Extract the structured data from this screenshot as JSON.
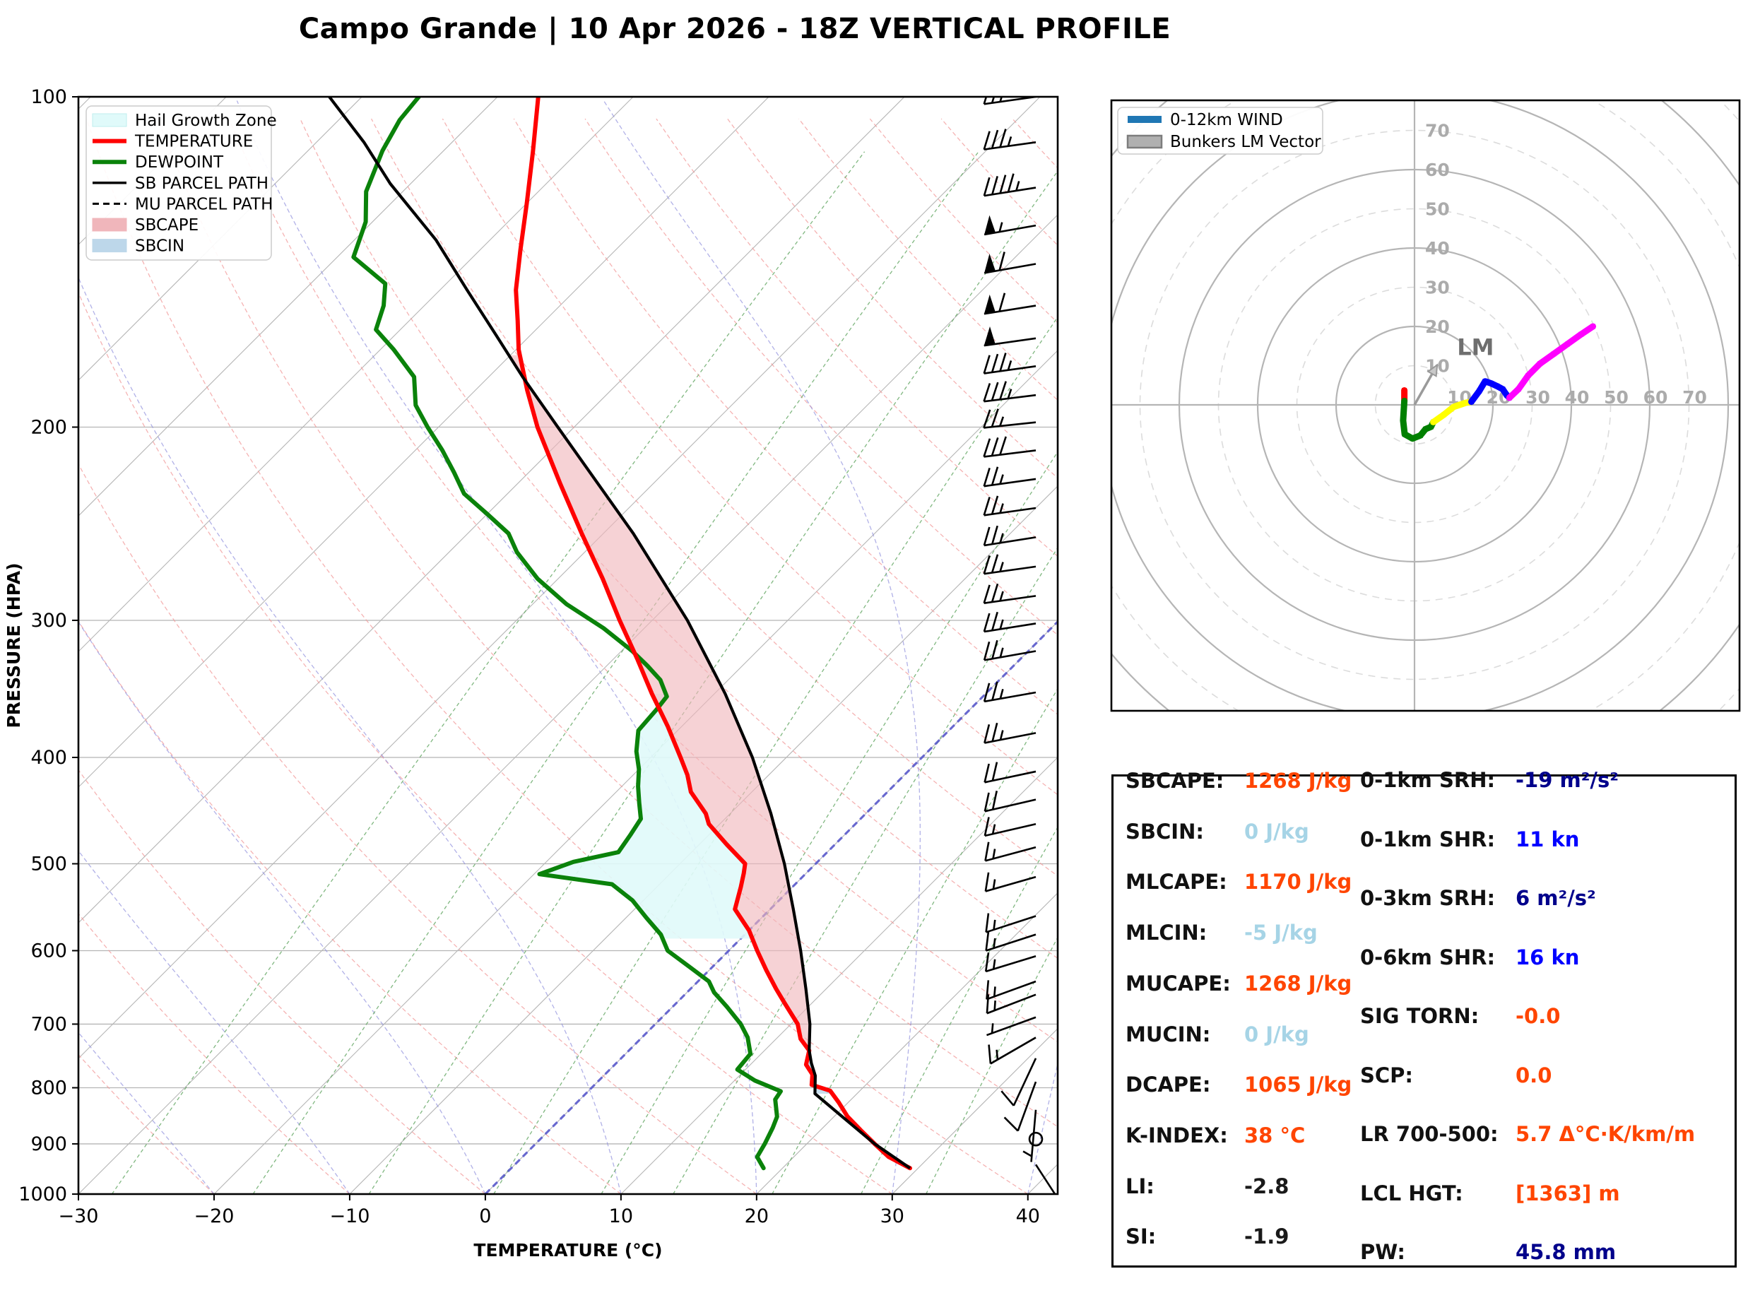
{
  "title": "Campo Grande | 10 Apr 2026 - 18Z VERTICAL PROFILE",
  "colors": {
    "temperature": "#ff0000",
    "dewpoint": "#0a820a",
    "parcel": "#000000",
    "sbcape_fill": "#f0b6bb",
    "sbcin_fill": "#bdd7ea",
    "hail_fill": "#e0fafa",
    "grid": "#b5b5b5",
    "dry_adiabat": "#f19999",
    "moist_adiabat": "#9090dd",
    "mixing_ratio": "#6aaa6a",
    "zero_isotherm": "#4d4dcc",
    "hodo_wind": "#1f77b4",
    "bunkers_gray": "#b0b0b0",
    "value_orange": "#ff4500",
    "value_lightblue": "#a6d4e6",
    "value_navy": "#00008b",
    "value_blue": "#0000ff",
    "value_black": "#1a1a1a"
  },
  "chart_data": [
    {
      "type": "skewt",
      "xlabel": "TEMPERATURE (°C)",
      "ylabel": "PRESSURE (HPA)",
      "x_ticks": [
        -30,
        -20,
        -10,
        0,
        10,
        20,
        30,
        40
      ],
      "p_ticks": [
        100,
        200,
        300,
        400,
        500,
        600,
        700,
        800,
        900,
        1000
      ],
      "xlim": [
        -30,
        42.2
      ],
      "plim": [
        100,
        1000
      ],
      "legend": [
        "Hail Growth Zone",
        "TEMPERATURE",
        "DEWPOINT",
        "SB PARCEL PATH",
        "MU PARCEL PATH",
        "SBCAPE",
        "SBCIN"
      ],
      "series": {
        "temperature": [
          [
            947,
            29.4
          ],
          [
            925,
            27.0
          ],
          [
            900,
            25.0
          ],
          [
            875,
            23.0
          ],
          [
            850,
            21.0
          ],
          [
            825,
            19.3
          ],
          [
            805,
            17.8
          ],
          [
            795,
            16.0
          ],
          [
            778,
            15.3
          ],
          [
            762,
            14.1
          ],
          [
            740,
            13.3
          ],
          [
            722,
            11.8
          ],
          [
            700,
            10.5
          ],
          [
            670,
            8.0
          ],
          [
            650,
            6.3
          ],
          [
            625,
            4.2
          ],
          [
            600,
            2.1
          ],
          [
            575,
            0.0
          ],
          [
            550,
            -2.6
          ],
          [
            525,
            -3.8
          ],
          [
            510,
            -4.6
          ],
          [
            500,
            -5.2
          ],
          [
            480,
            -8.0
          ],
          [
            460,
            -10.8
          ],
          [
            450,
            -11.8
          ],
          [
            430,
            -14.5
          ],
          [
            415,
            -16.0
          ],
          [
            400,
            -17.8
          ],
          [
            375,
            -21.0
          ],
          [
            350,
            -24.6
          ],
          [
            325,
            -28.3
          ],
          [
            300,
            -32.4
          ],
          [
            275,
            -36.7
          ],
          [
            250,
            -41.6
          ],
          [
            225,
            -46.9
          ],
          [
            200,
            -52.7
          ],
          [
            185,
            -56.2
          ],
          [
            170,
            -59.8
          ],
          [
            160,
            -62.0
          ],
          [
            150,
            -64.4
          ],
          [
            138,
            -67.0
          ],
          [
            125,
            -70.0
          ],
          [
            112,
            -73.4
          ],
          [
            100,
            -77.0
          ]
        ],
        "dewpoint": [
          [
            947,
            18.6
          ],
          [
            925,
            17.3
          ],
          [
            900,
            16.9
          ],
          [
            870,
            16.3
          ],
          [
            850,
            15.8
          ],
          [
            820,
            14.4
          ],
          [
            806,
            14.2
          ],
          [
            788,
            11.5
          ],
          [
            770,
            9.4
          ],
          [
            745,
            9.2
          ],
          [
            720,
            7.8
          ],
          [
            700,
            6.3
          ],
          [
            675,
            4.0
          ],
          [
            655,
            2.0
          ],
          [
            640,
            0.8
          ],
          [
            620,
            -1.8
          ],
          [
            600,
            -4.5
          ],
          [
            580,
            -6.2
          ],
          [
            560,
            -8.5
          ],
          [
            540,
            -10.8
          ],
          [
            522,
            -13.5
          ],
          [
            511,
            -19.6
          ],
          [
            498,
            -18.0
          ],
          [
            488,
            -15.4
          ],
          [
            470,
            -15.8
          ],
          [
            455,
            -16.2
          ],
          [
            440,
            -17.5
          ],
          [
            425,
            -18.8
          ],
          [
            410,
            -20.0
          ],
          [
            395,
            -21.5
          ],
          [
            378,
            -22.9
          ],
          [
            362,
            -23.1
          ],
          [
            352,
            -23.3
          ],
          [
            340,
            -25.0
          ],
          [
            330,
            -27.0
          ],
          [
            320,
            -29.2
          ],
          [
            305,
            -33.0
          ],
          [
            290,
            -37.5
          ],
          [
            275,
            -41.5
          ],
          [
            260,
            -45.0
          ],
          [
            250,
            -47.0
          ],
          [
            240,
            -50.0
          ],
          [
            230,
            -53.2
          ],
          [
            220,
            -55.5
          ],
          [
            210,
            -58.0
          ],
          [
            200,
            -60.8
          ],
          [
            191,
            -63.3
          ],
          [
            180,
            -65.5
          ],
          [
            170,
            -69.0
          ],
          [
            163,
            -71.8
          ],
          [
            155,
            -73.0
          ],
          [
            148,
            -74.5
          ],
          [
            140,
            -78.8
          ],
          [
            130,
            -80.5
          ],
          [
            122,
            -82.7
          ],
          [
            112,
            -84.5
          ],
          [
            105,
            -85.5
          ],
          [
            100,
            -85.8
          ]
        ],
        "sb_parcel": [
          [
            947,
            29.4
          ],
          [
            900,
            25.0
          ],
          [
            850,
            20.6
          ],
          [
            810,
            16.9
          ],
          [
            780,
            15.6
          ],
          [
            760,
            14.4
          ],
          [
            740,
            13.3
          ],
          [
            700,
            11.4
          ],
          [
            650,
            8.5
          ],
          [
            600,
            5.3
          ],
          [
            550,
            1.7
          ],
          [
            500,
            -2.3
          ],
          [
            450,
            -7.0
          ],
          [
            400,
            -12.5
          ],
          [
            350,
            -19.2
          ],
          [
            300,
            -27.4
          ],
          [
            250,
            -37.8
          ],
          [
            200,
            -51.2
          ],
          [
            180,
            -57.5
          ],
          [
            165,
            -62.5
          ],
          [
            150,
            -68.0
          ],
          [
            135,
            -74.0
          ],
          [
            120,
            -81.5
          ],
          [
            110,
            -86.5
          ],
          [
            100,
            -92.4
          ]
        ],
        "mu_parcel_same_as_sb": true
      },
      "fills": {
        "sbcape": {
          "p_bottom": 740,
          "p_top": 172
        },
        "sbcin": {
          "p_bottom": 810,
          "p_top": 742
        },
        "hail_zone": {
          "p_bottom": 585,
          "p_top": 350
        }
      },
      "wind_barbs": [
        [
          100,
          25,
          262
        ],
        [
          110,
          35,
          262
        ],
        [
          121,
          45,
          261
        ],
        [
          131,
          55,
          260
        ],
        [
          142,
          60,
          260
        ],
        [
          155,
          60,
          261
        ],
        [
          166,
          50,
          262
        ],
        [
          176,
          35,
          262
        ],
        [
          187,
          35,
          263
        ],
        [
          198,
          25,
          264
        ],
        [
          210,
          30,
          263
        ],
        [
          223,
          25,
          262
        ],
        [
          237,
          25,
          262
        ],
        [
          252,
          25,
          261
        ],
        [
          268,
          25,
          262
        ],
        [
          285,
          25,
          262
        ],
        [
          302,
          25,
          261
        ],
        [
          320,
          25,
          260
        ],
        [
          349,
          25,
          260
        ],
        [
          380,
          25,
          259
        ],
        [
          412,
          20,
          258
        ],
        [
          437,
          20,
          257
        ],
        [
          460,
          15,
          257
        ],
        [
          483,
          15,
          255
        ],
        [
          514,
          15,
          254
        ],
        [
          558,
          15,
          252
        ],
        [
          580,
          15,
          252
        ],
        [
          607,
          15,
          253
        ],
        [
          640,
          15,
          250
        ],
        [
          658,
          15,
          249
        ],
        [
          690,
          5,
          250
        ],
        [
          720,
          15,
          240
        ],
        [
          752,
          10,
          205
        ],
        [
          790,
          10,
          200
        ],
        [
          838,
          5,
          185
        ],
        [
          891,
          0,
          0
        ],
        [
          940,
          10,
          147
        ]
      ]
    },
    {
      "type": "hodograph",
      "legend": [
        "0-12km WIND",
        "Bunkers LM Vector"
      ],
      "ring_step": 10,
      "ring_labels_up": [
        10,
        20,
        30,
        40,
        50,
        60,
        70
      ],
      "ring_labels_right": [
        10,
        20,
        30,
        40,
        50,
        60,
        70
      ],
      "units": "kn",
      "segments": [
        {
          "color": "#ff0000",
          "points": [
            [
              -2.6,
              3.7
            ],
            [
              -2.6,
              1.0
            ]
          ]
        },
        {
          "color": "#008000",
          "points": [
            [
              -2.6,
              1.0
            ],
            [
              -2.9,
              -4.0
            ],
            [
              -2.5,
              -7.5
            ],
            [
              -0.5,
              -8.6
            ],
            [
              1.5,
              -7.8
            ],
            [
              2.8,
              -6.2
            ],
            [
              4.2,
              -5.6
            ],
            [
              4.8,
              -4.4
            ]
          ]
        },
        {
          "color": "#ffff00",
          "points": [
            [
              4.8,
              -4.4
            ],
            [
              7.5,
              -2.5
            ],
            [
              10.0,
              -0.5
            ],
            [
              13.0,
              0.5
            ],
            [
              14.5,
              0.8
            ]
          ]
        },
        {
          "color": "#0000ff",
          "points": [
            [
              14.5,
              0.8
            ],
            [
              16.5,
              3.5
            ],
            [
              18.0,
              6.0
            ],
            [
              19.5,
              5.5
            ],
            [
              21.0,
              4.8
            ],
            [
              22.5,
              4.0
            ],
            [
              23.5,
              2.5
            ],
            [
              24.2,
              1.8
            ]
          ]
        },
        {
          "color": "#ff00ff",
          "points": [
            [
              24.2,
              1.8
            ],
            [
              26.5,
              4.0
            ],
            [
              29.0,
              7.5
            ],
            [
              32.0,
              10.5
            ],
            [
              35.5,
              13.0
            ],
            [
              39.0,
              15.5
            ],
            [
              42.5,
              18.0
            ],
            [
              45.5,
              20.0
            ]
          ]
        }
      ],
      "bunkers_lm": {
        "u": 5.8,
        "v": 10.2,
        "label": "LM"
      }
    },
    {
      "type": "table",
      "left_rows": [
        {
          "label": "SBCAPE:",
          "value": "1268 J/kg",
          "color": "#ff4500"
        },
        {
          "label": "SBCIN:",
          "value": "0 J/kg",
          "color": "#a6d4e6"
        },
        {
          "label": "MLCAPE:",
          "value": "1170 J/kg",
          "color": "#ff4500"
        },
        {
          "label": "MLCIN:",
          "value": "-5 J/kg",
          "color": "#a6d4e6"
        },
        {
          "label": "MUCAPE:",
          "value": "1268 J/kg",
          "color": "#ff4500"
        },
        {
          "label": "MUCIN:",
          "value": "0 J/kg",
          "color": "#a6d4e6"
        },
        {
          "label": "DCAPE:",
          "value": "1065 J/kg",
          "color": "#ff4500"
        },
        {
          "label": "K-INDEX:",
          "value": "38 °C",
          "color": "#ff4500"
        },
        {
          "label": "LI:",
          "value": "-2.8",
          "color": "#1a1a1a"
        },
        {
          "label": "SI:",
          "value": "-1.9",
          "color": "#1a1a1a"
        }
      ],
      "right_rows": [
        {
          "label": "0-1km SRH:",
          "value": "-19 m²/s²",
          "color": "#00008b"
        },
        {
          "label": "0-1km SHR:",
          "value": "11 kn",
          "color": "#0000ff"
        },
        {
          "label": "0-3km SRH:",
          "value": "6 m²/s²",
          "color": "#00008b"
        },
        {
          "label": "0-6km SHR:",
          "value": "16 kn",
          "color": "#0000ff"
        },
        {
          "label": "SIG TORN:",
          "value": "-0.0",
          "color": "#ff4500"
        },
        {
          "label": "SCP:",
          "value": "0.0",
          "color": "#ff4500"
        },
        {
          "label": "LR 700-500:",
          "value": "5.7 Δ°C·K/km/m",
          "color": "#ff4500"
        },
        {
          "label": "LCL HGT:",
          "value": "[1363] m",
          "color": "#ff4500"
        },
        {
          "label": "PW:",
          "value": "45.8 mm",
          "color": "#00008b"
        }
      ]
    }
  ]
}
